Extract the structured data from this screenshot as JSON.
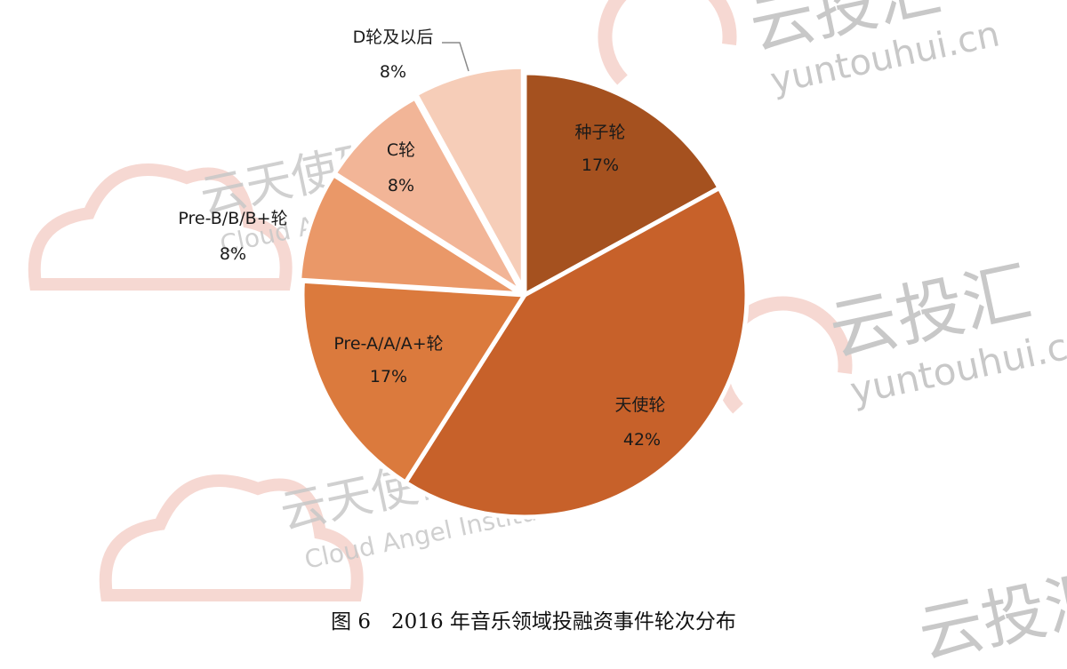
{
  "watermarks": {
    "brand_cn": "云投汇",
    "brand_url": "yuntouhui.cn",
    "institute_cn": "云天使研究院",
    "institute_en": "Cloud Angel Institute"
  },
  "caption": "图 6　2016 年音乐领域投融资事件轮次分布",
  "chart_data": {
    "type": "pie",
    "start_angle_deg": 0,
    "direction": "clockwise",
    "slices": [
      {
        "label": "种子轮",
        "value": 17,
        "value_label": "17%",
        "color": "#a5511f"
      },
      {
        "label": "天使轮",
        "value": 42,
        "value_label": "42%",
        "color": "#c7612a"
      },
      {
        "label": "Pre-A/A/A+轮",
        "value": 17,
        "value_label": "17%",
        "color": "#db7a3d"
      },
      {
        "label": "Pre-B/B/B+轮",
        "value": 8,
        "value_label": "8%",
        "color": "#ea9868"
      },
      {
        "label": "C轮",
        "value": 8,
        "value_label": "8%",
        "color": "#f2b597"
      },
      {
        "label": "D轮及以后",
        "value": 8,
        "value_label": "8%",
        "color": "#f6cdb8"
      }
    ]
  }
}
